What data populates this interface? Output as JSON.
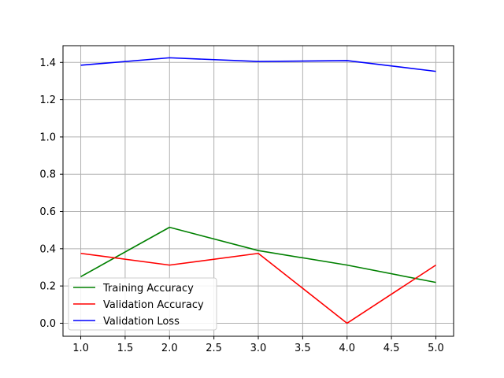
{
  "chart_data": {
    "type": "line",
    "title": "",
    "xlabel": "",
    "ylabel": "",
    "x": [
      1.0,
      2.0,
      3.0,
      4.0,
      5.0
    ],
    "xlim": [
      0.8,
      5.2
    ],
    "ylim": [
      -0.07,
      1.49
    ],
    "xticks": [
      1.0,
      1.5,
      2.0,
      2.5,
      3.0,
      3.5,
      4.0,
      4.5,
      5.0
    ],
    "xtick_labels": [
      "1.0",
      "1.5",
      "2.0",
      "2.5",
      "3.0",
      "3.5",
      "4.0",
      "4.5",
      "5.0"
    ],
    "yticks": [
      0.0,
      0.2,
      0.4,
      0.6,
      0.8,
      1.0,
      1.2,
      1.4
    ],
    "ytick_labels": [
      "0.0",
      "0.2",
      "0.4",
      "0.6",
      "0.8",
      "1.0",
      "1.2",
      "1.4"
    ],
    "grid": true,
    "legend_position": "bottom-left",
    "series": [
      {
        "name": "Training Accuracy",
        "color": "#008000",
        "values": [
          0.25,
          0.515,
          0.39,
          0.312,
          0.219
        ]
      },
      {
        "name": "Validation Accuracy",
        "color": "#ff0000",
        "values": [
          0.375,
          0.312,
          0.375,
          0.0,
          0.312
        ]
      },
      {
        "name": "Validation Loss",
        "color": "#0000ff",
        "values": [
          1.385,
          1.425,
          1.405,
          1.41,
          1.352
        ]
      }
    ]
  }
}
